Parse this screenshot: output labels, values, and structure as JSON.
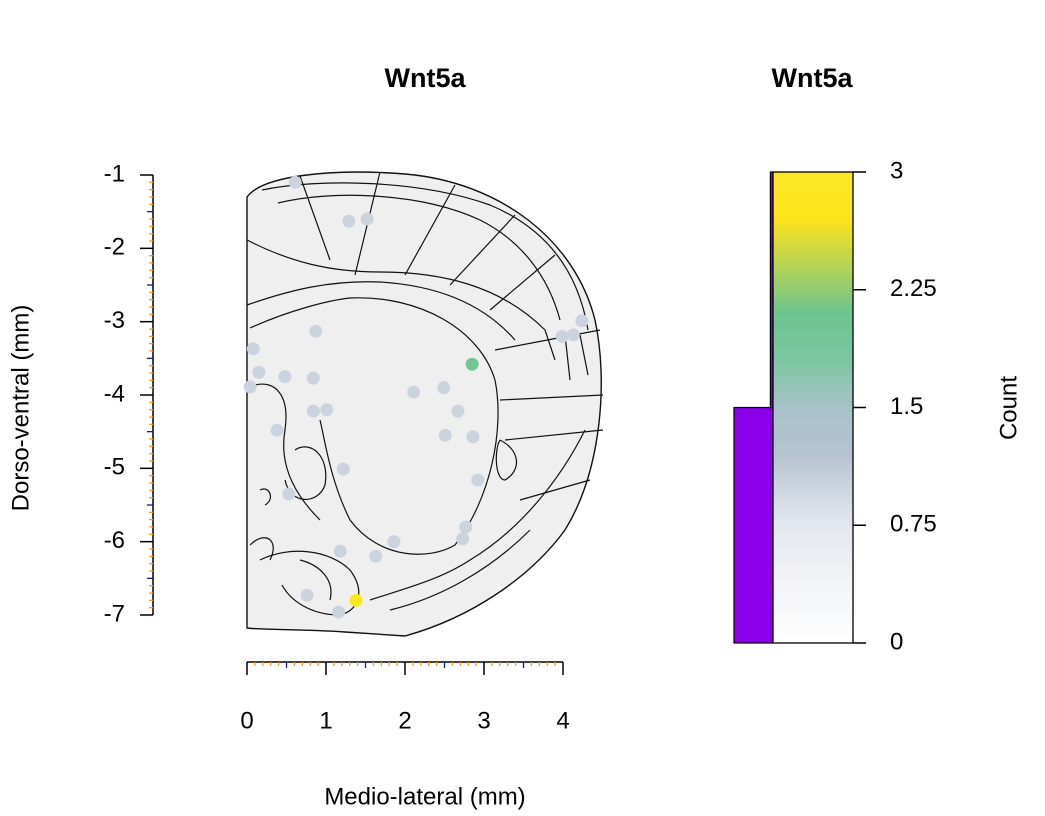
{
  "chart_data": [
    {
      "type": "scatter",
      "title": "Wnt5a",
      "x_label": "Medio-lateral (mm)",
      "y_label": "Dorso-ventral (mm)",
      "xlim": [
        0,
        4
      ],
      "ylim": [
        -7,
        -1
      ],
      "xticks": [
        0,
        1,
        2,
        3,
        4
      ],
      "yticks": [
        -1,
        -2,
        -3,
        -4,
        -5,
        -6,
        -7
      ],
      "minor_divisions": 10,
      "x": [
        0.61,
        1.29,
        1.52,
        0.87,
        0.08,
        0.15,
        0.48,
        0.84,
        0.04,
        0.84,
        1.01,
        0.38,
        1.22,
        0.53,
        1.18,
        1.63,
        1.86,
        0.76,
        1.16,
        2.11,
        2.49,
        2.67,
        2.51,
        2.86,
        2.92,
        2.77,
        2.73,
        3.99,
        4.13,
        4.24,
        2.85,
        1.38
      ],
      "y": [
        -1.1,
        -1.63,
        -1.6,
        -3.13,
        -3.37,
        -3.69,
        -3.75,
        -3.77,
        -3.89,
        -4.22,
        -4.2,
        -4.48,
        -5.01,
        -5.35,
        -6.13,
        -6.2,
        -6.0,
        -6.73,
        -6.96,
        -3.96,
        -3.9,
        -4.22,
        -4.55,
        -4.57,
        -5.16,
        -5.8,
        -5.96,
        -3.2,
        -3.18,
        -2.99,
        -3.58,
        -6.8
      ],
      "counts": [
        1,
        1,
        1,
        1,
        1,
        1,
        1,
        1,
        1,
        1,
        1,
        1,
        1,
        1,
        1,
        1,
        1,
        1,
        1,
        1,
        1,
        1,
        1,
        1,
        1,
        1,
        1,
        1,
        1,
        1,
        2,
        3
      ]
    },
    {
      "type": "colorbar",
      "title": "Wnt5a",
      "y_label": "Count",
      "ylim": [
        0,
        3
      ],
      "yticks": [
        0,
        0.75,
        1.5,
        2.25,
        3
      ],
      "bins": [
        0,
        1.5,
        3
      ],
      "hist_counts": [
        30,
        2
      ],
      "hist_color": "#8b00e8",
      "xlim": [
        0,
        30
      ],
      "colormap": [
        {
          "value": 0,
          "color": "#ffffff"
        },
        {
          "value": 0.75,
          "color": "#e4e8ee"
        },
        {
          "value": 1.2,
          "color": "#b6c3d2"
        },
        {
          "value": 1.5,
          "color": "#a8c2c9"
        },
        {
          "value": 1.8,
          "color": "#7cc6a2"
        },
        {
          "value": 2.1,
          "color": "#6ec48f"
        },
        {
          "value": 2.4,
          "color": "#b5d356"
        },
        {
          "value": 2.7,
          "color": "#fde31c"
        },
        {
          "value": 3,
          "color": "#fde725"
        }
      ]
    }
  ]
}
